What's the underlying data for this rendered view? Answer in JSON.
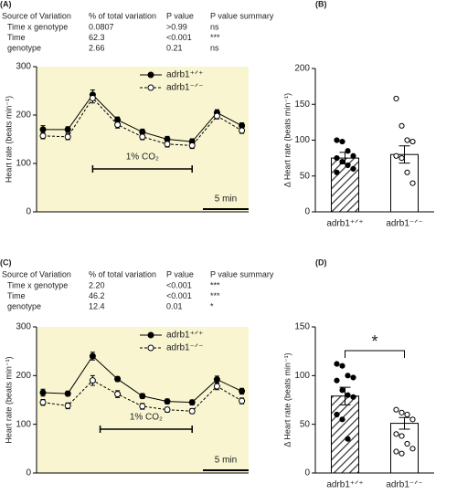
{
  "chart_data": [
    {
      "type": "line",
      "label": "(A)",
      "table": {
        "header": [
          "Source of Variation",
          "% of total variation",
          "P value",
          "P value summary"
        ],
        "rows": [
          [
            "Time x genotype",
            "0.0807",
            ">0.99",
            "ns"
          ],
          [
            "Time",
            "62.3",
            "<0.001",
            "***"
          ],
          [
            "genotype",
            "2.66",
            "0.21",
            "ns"
          ]
        ]
      },
      "ylabel": "Heart rate (beats min⁻¹)",
      "categories": [
        null,
        null,
        null,
        null,
        null,
        null,
        null,
        null,
        null
      ],
      "series": [
        {
          "name": "adrb1⁺ᐟ⁺",
          "color": "#000000",
          "marker": "filled",
          "values": [
            170,
            170,
            242,
            190,
            165,
            150,
            145,
            205,
            178
          ],
          "errors": [
            8,
            6,
            10,
            6,
            6,
            6,
            6,
            6,
            6
          ]
        },
        {
          "name": "adrb1⁻ᐟ⁻",
          "color": "#000000",
          "marker": "open",
          "dashed": true,
          "values": [
            157,
            155,
            235,
            180,
            155,
            140,
            137,
            198,
            168
          ],
          "errors": [
            6,
            6,
            10,
            7,
            6,
            6,
            6,
            6,
            6
          ]
        }
      ],
      "ylim": [
        0,
        300
      ],
      "yticks": [
        0,
        100,
        200,
        300
      ],
      "annotations": [
        "1% CO₂",
        "5 min"
      ],
      "background": "#f8f5d0"
    },
    {
      "type": "bar",
      "label": "(B)",
      "ylabel": "Δ Heart rate (beats min⁻¹)",
      "categories": [
        "adrb1⁺ᐟ⁺",
        "adrb1⁻ᐟ⁻"
      ],
      "values": [
        75,
        80
      ],
      "errors": [
        8,
        12
      ],
      "bar_styles": [
        "hatched",
        "open"
      ],
      "points": [
        [
          100,
          98,
          85,
          78,
          75,
          70,
          65,
          60,
          55
        ],
        [
          158,
          120,
          100,
          98,
          78,
          75,
          55,
          40
        ]
      ],
      "ylim": [
        0,
        200
      ],
      "yticks": [
        0,
        50,
        100,
        150,
        200
      ]
    },
    {
      "type": "line",
      "label": "(C)",
      "table": {
        "header": [
          "Source of Variation",
          "% of total variation",
          "P value",
          "P value summary"
        ],
        "rows": [
          [
            "Time x genotype",
            "2.20",
            "<0.001",
            "***"
          ],
          [
            "Time",
            "46.2",
            "<0.001",
            "***"
          ],
          [
            "genotype",
            "12.4",
            "0.01",
            "*"
          ]
        ]
      },
      "ylabel": "Heart rate (beats min⁻¹)",
      "categories": [
        null,
        null,
        null,
        null,
        null,
        null,
        null,
        null,
        null
      ],
      "series": [
        {
          "name": "adrb1⁺ᐟ⁺",
          "color": "#000000",
          "marker": "filled",
          "values": [
            165,
            163,
            240,
            193,
            158,
            147,
            145,
            192,
            168
          ],
          "errors": [
            7,
            5,
            8,
            5,
            5,
            5,
            5,
            7,
            6
          ]
        },
        {
          "name": "adrb1⁻ᐟ⁻",
          "color": "#000000",
          "marker": "open",
          "dashed": true,
          "values": [
            145,
            138,
            190,
            162,
            137,
            130,
            127,
            178,
            148
          ],
          "errors": [
            6,
            6,
            10,
            7,
            6,
            5,
            5,
            7,
            6
          ]
        }
      ],
      "ylim": [
        0,
        300
      ],
      "yticks": [
        0,
        100,
        200,
        300
      ],
      "annotations": [
        "1% CO₂",
        "5 min"
      ],
      "background": "#f8f5d0"
    },
    {
      "type": "bar",
      "label": "(D)",
      "ylabel": "Δ Heart rate (beats min⁻¹)",
      "categories": [
        "adrb1⁺ᐟ⁺",
        "adrb1⁻ᐟ⁻"
      ],
      "values": [
        79,
        51
      ],
      "errors": [
        9,
        6
      ],
      "bar_styles": [
        "hatched",
        "open"
      ],
      "points": [
        [
          112,
          110,
          100,
          98,
          95,
          85,
          80,
          78,
          60,
          55,
          35
        ],
        [
          65,
          62,
          60,
          55,
          40,
          38,
          30,
          25,
          22,
          20
        ]
      ],
      "ylim": [
        0,
        150
      ],
      "yticks": [
        0,
        50,
        100,
        150
      ],
      "significance": "*"
    }
  ]
}
